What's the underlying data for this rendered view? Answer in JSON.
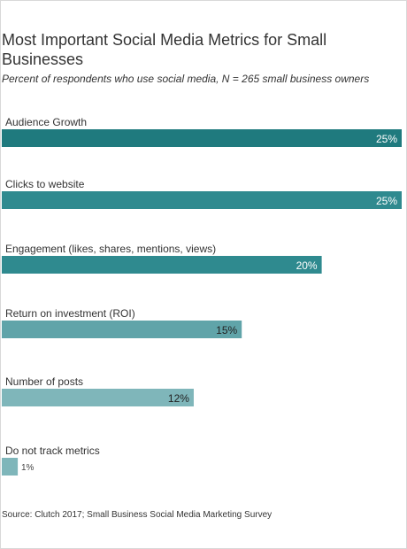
{
  "title": "Most Important Social Media Metrics for Small Businesses",
  "subtitle": "Percent of respondents who use social media, N = 265 small business owners",
  "source": "Source: Clutch 2017; Small Business Social Media Marketing Survey",
  "colors": {
    "bar_dark": "#1f7a7e",
    "bar_medium": "#2f8a8f",
    "bar_light": "#60a4a9",
    "bar_lighter": "#7fb6ba",
    "label_text": "#333333"
  },
  "chart_data": {
    "type": "bar",
    "orientation": "horizontal",
    "categories": [
      "Audience Growth",
      "Clicks to website",
      "Engagement (likes, shares, mentions, views)",
      "Return on investment (ROI)",
      "Number of posts",
      "Do not track metrics"
    ],
    "values": [
      25,
      25,
      20,
      15,
      12,
      1
    ],
    "value_labels": [
      "25%",
      "25%",
      "20%",
      "15%",
      "12%",
      "1%"
    ],
    "xlim": [
      0,
      25
    ],
    "grid": false,
    "legend": "none"
  }
}
